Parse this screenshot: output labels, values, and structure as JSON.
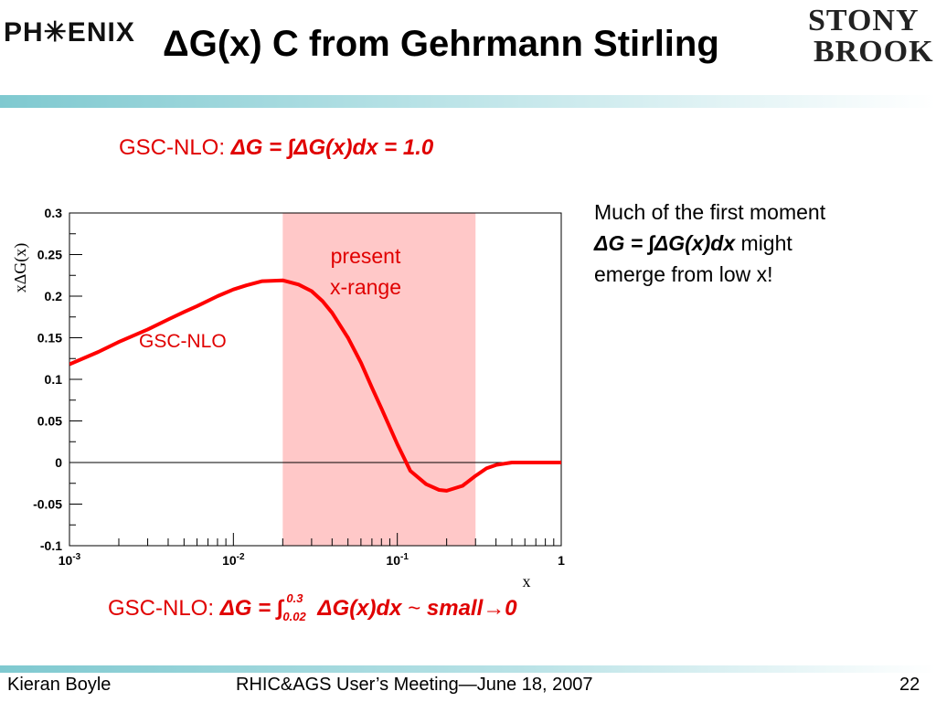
{
  "header": {
    "logo_left_text": "PH✳ENIX",
    "title": "ΔG(x) C from Gehrmann Stirling",
    "logo_right_line1": "STONY",
    "logo_right_line2": "BROOK"
  },
  "formula_top": {
    "prefix": "GSC-NLO: ",
    "body": "ΔG = ∫ΔG(x)dx = 1.0"
  },
  "note": {
    "line1": "Much of the first moment",
    "line2_formula": "ΔG = ∫ΔG(x)dx",
    "line2_rest": " might",
    "line3": "emerge from low x!"
  },
  "formula_bottom": {
    "prefix": "GSC-NLO: ",
    "lhs": "ΔG = ∫",
    "upper_limit": "0.3",
    "lower_limit": "0.02",
    "rhs": "ΔG(x)dx",
    "tilde": " ~ ",
    "small": "small",
    "arrow": "→",
    "zero": "0"
  },
  "footer": {
    "author": "Kieran Boyle",
    "meeting": "RHIC&AGS User’s Meeting—June 18, 2007",
    "page": "22"
  },
  "colors": {
    "curve": "#ff0000",
    "band": "#ffc8c8",
    "annotation": "#e00000",
    "header_bar": "#7fc9d0"
  },
  "chart_data": {
    "type": "line",
    "title": "",
    "xlabel": "x",
    "ylabel": "xΔG(x)",
    "x_scale": "log",
    "xlim": [
      0.001,
      1
    ],
    "ylim": [
      -0.1,
      0.3
    ],
    "x_ticks": [
      {
        "value": 0.001,
        "base": "10",
        "exp": "-3"
      },
      {
        "value": 0.01,
        "base": "10",
        "exp": "-2"
      },
      {
        "value": 0.1,
        "base": "10",
        "exp": "-1"
      },
      {
        "value": 1,
        "base": "1",
        "exp": ""
      }
    ],
    "y_ticks": [
      {
        "value": -0.1,
        "label": "-0.1"
      },
      {
        "value": -0.05,
        "label": "-0.05"
      },
      {
        "value": 0,
        "label": "0"
      },
      {
        "value": 0.05,
        "label": "0.05"
      },
      {
        "value": 0.1,
        "label": "0.1"
      },
      {
        "value": 0.15,
        "label": "0.15"
      },
      {
        "value": 0.2,
        "label": "0.2"
      },
      {
        "value": 0.25,
        "label": "0.25"
      },
      {
        "value": 0.3,
        "label": "0.3"
      }
    ],
    "grid": false,
    "band": {
      "x_min": 0.02,
      "x_max": 0.3,
      "label_line1": "present",
      "label_line2": "x-range"
    },
    "series": [
      {
        "name": "GSC-NLO",
        "x": [
          0.001,
          0.0015,
          0.002,
          0.003,
          0.004,
          0.005,
          0.006,
          0.008,
          0.01,
          0.012,
          0.015,
          0.02,
          0.025,
          0.03,
          0.035,
          0.04,
          0.05,
          0.06,
          0.07,
          0.08,
          0.1,
          0.12,
          0.15,
          0.18,
          0.2,
          0.25,
          0.3,
          0.35,
          0.4,
          0.5,
          0.6,
          0.8,
          1.0
        ],
        "y": [
          0.118,
          0.133,
          0.145,
          0.16,
          0.172,
          0.181,
          0.188,
          0.2,
          0.208,
          0.213,
          0.218,
          0.219,
          0.214,
          0.206,
          0.194,
          0.18,
          0.15,
          0.12,
          0.09,
          0.065,
          0.022,
          -0.01,
          -0.026,
          -0.033,
          -0.034,
          -0.028,
          -0.016,
          -0.007,
          -0.003,
          0.0,
          0.0,
          0.0,
          0.0
        ]
      }
    ]
  }
}
